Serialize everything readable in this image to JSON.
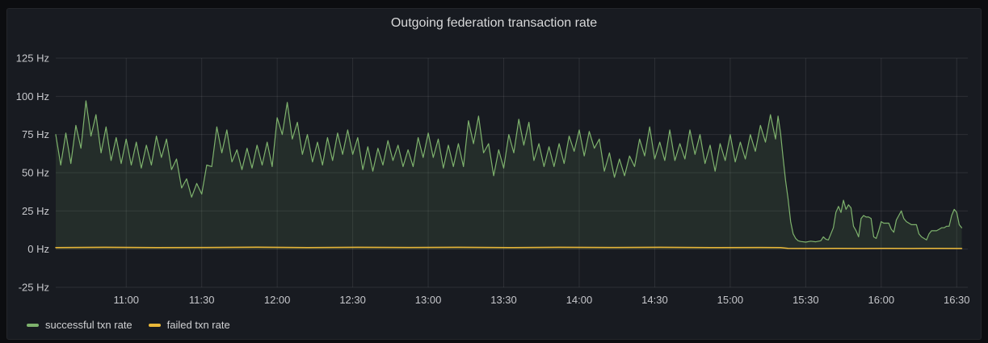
{
  "panel": {
    "title": "Outgoing federation transaction rate"
  },
  "colors": {
    "page_bg": "#0c0d10",
    "panel_bg": "#181b21",
    "grid": "rgba(255,255,255,0.09)",
    "title_text": "#d8d9da",
    "tick_text": "#c7c8cc",
    "green": "#7EB26D",
    "yellow": "#EAB839"
  },
  "chart_data": {
    "type": "line",
    "title": "Outgoing federation transaction rate",
    "unit": "Hz",
    "grid": true,
    "legend_position": "bottom-left",
    "x_min": 0,
    "x_max": 360,
    "y_min": -25,
    "y_max": 125,
    "x_start_time": "10:32",
    "x_end_time": "16:32",
    "y_ticks": [
      {
        "v": 125,
        "label": "125 Hz"
      },
      {
        "v": 100,
        "label": "100 Hz"
      },
      {
        "v": 75,
        "label": "75 Hz"
      },
      {
        "v": 50,
        "label": "50 Hz"
      },
      {
        "v": 25,
        "label": "25 Hz"
      },
      {
        "v": 0,
        "label": "0 Hz"
      },
      {
        "v": -25,
        "label": "-25 Hz"
      }
    ],
    "x_ticks": [
      {
        "t": 28,
        "label": "11:00"
      },
      {
        "t": 58,
        "label": "11:30"
      },
      {
        "t": 88,
        "label": "12:00"
      },
      {
        "t": 118,
        "label": "12:30"
      },
      {
        "t": 148,
        "label": "13:00"
      },
      {
        "t": 178,
        "label": "13:30"
      },
      {
        "t": 208,
        "label": "14:00"
      },
      {
        "t": 238,
        "label": "14:30"
      },
      {
        "t": 268,
        "label": "15:00"
      },
      {
        "t": 298,
        "label": "15:30"
      },
      {
        "t": 328,
        "label": "16:00"
      },
      {
        "t": 358,
        "label": "16:30"
      }
    ],
    "series": [
      {
        "name": "successful txn rate",
        "color": "#7EB26D",
        "fill": "rgba(126,178,109,0.12)",
        "line_width": 1.2,
        "points": [
          [
            0,
            75
          ],
          [
            2,
            55
          ],
          [
            4,
            76
          ],
          [
            6,
            56
          ],
          [
            8,
            81
          ],
          [
            10,
            66
          ],
          [
            12,
            97
          ],
          [
            14,
            74
          ],
          [
            16,
            88
          ],
          [
            18,
            63
          ],
          [
            20,
            80
          ],
          [
            22,
            58
          ],
          [
            24,
            73
          ],
          [
            26,
            56
          ],
          [
            28,
            72
          ],
          [
            30,
            55
          ],
          [
            32,
            70
          ],
          [
            34,
            53
          ],
          [
            36,
            68
          ],
          [
            38,
            55
          ],
          [
            40,
            74
          ],
          [
            42,
            60
          ],
          [
            44,
            72
          ],
          [
            46,
            52
          ],
          [
            48,
            59
          ],
          [
            50,
            40
          ],
          [
            52,
            46
          ],
          [
            54,
            34
          ],
          [
            56,
            43
          ],
          [
            58,
            36
          ],
          [
            60,
            55
          ],
          [
            62,
            54
          ],
          [
            64,
            80
          ],
          [
            66,
            63
          ],
          [
            68,
            78
          ],
          [
            70,
            57
          ],
          [
            72,
            65
          ],
          [
            74,
            52
          ],
          [
            76,
            66
          ],
          [
            78,
            53
          ],
          [
            80,
            68
          ],
          [
            82,
            55
          ],
          [
            84,
            70
          ],
          [
            86,
            54
          ],
          [
            88,
            86
          ],
          [
            90,
            75
          ],
          [
            92,
            96
          ],
          [
            94,
            72
          ],
          [
            96,
            83
          ],
          [
            98,
            62
          ],
          [
            100,
            75
          ],
          [
            102,
            57
          ],
          [
            104,
            70
          ],
          [
            106,
            55
          ],
          [
            108,
            73
          ],
          [
            110,
            58
          ],
          [
            112,
            76
          ],
          [
            114,
            62
          ],
          [
            116,
            78
          ],
          [
            118,
            62
          ],
          [
            120,
            73
          ],
          [
            122,
            52
          ],
          [
            124,
            67
          ],
          [
            126,
            51
          ],
          [
            128,
            66
          ],
          [
            130,
            55
          ],
          [
            132,
            71
          ],
          [
            134,
            58
          ],
          [
            136,
            68
          ],
          [
            138,
            54
          ],
          [
            140,
            65
          ],
          [
            142,
            54
          ],
          [
            144,
            73
          ],
          [
            146,
            60
          ],
          [
            148,
            76
          ],
          [
            150,
            60
          ],
          [
            152,
            72
          ],
          [
            154,
            53
          ],
          [
            156,
            68
          ],
          [
            158,
            54
          ],
          [
            160,
            69
          ],
          [
            162,
            54
          ],
          [
            164,
            84
          ],
          [
            166,
            69
          ],
          [
            168,
            87
          ],
          [
            170,
            63
          ],
          [
            172,
            69
          ],
          [
            174,
            48
          ],
          [
            176,
            65
          ],
          [
            178,
            53
          ],
          [
            180,
            75
          ],
          [
            182,
            63
          ],
          [
            184,
            85
          ],
          [
            186,
            68
          ],
          [
            188,
            83
          ],
          [
            190,
            58
          ],
          [
            192,
            69
          ],
          [
            194,
            54
          ],
          [
            196,
            67
          ],
          [
            198,
            54
          ],
          [
            200,
            69
          ],
          [
            202,
            56
          ],
          [
            204,
            74
          ],
          [
            206,
            64
          ],
          [
            208,
            78
          ],
          [
            210,
            61
          ],
          [
            212,
            77
          ],
          [
            214,
            66
          ],
          [
            216,
            72
          ],
          [
            218,
            51
          ],
          [
            220,
            63
          ],
          [
            222,
            47
          ],
          [
            224,
            59
          ],
          [
            226,
            48
          ],
          [
            228,
            61
          ],
          [
            230,
            54
          ],
          [
            232,
            72
          ],
          [
            234,
            61
          ],
          [
            236,
            80
          ],
          [
            238,
            59
          ],
          [
            240,
            70
          ],
          [
            242,
            58
          ],
          [
            244,
            78
          ],
          [
            246,
            58
          ],
          [
            248,
            69
          ],
          [
            250,
            59
          ],
          [
            252,
            78
          ],
          [
            254,
            62
          ],
          [
            256,
            75
          ],
          [
            258,
            56
          ],
          [
            260,
            68
          ],
          [
            262,
            51
          ],
          [
            264,
            69
          ],
          [
            266,
            58
          ],
          [
            268,
            75
          ],
          [
            270,
            57
          ],
          [
            272,
            70
          ],
          [
            274,
            59
          ],
          [
            276,
            75
          ],
          [
            278,
            64
          ],
          [
            280,
            81
          ],
          [
            282,
            70
          ],
          [
            284,
            88
          ],
          [
            286,
            72
          ],
          [
            287,
            87
          ],
          [
            288,
            76
          ],
          [
            289,
            60
          ],
          [
            290,
            45
          ],
          [
            291,
            33
          ],
          [
            292,
            18
          ],
          [
            293,
            10
          ],
          [
            294,
            7
          ],
          [
            295,
            5.5
          ],
          [
            296,
            5
          ],
          [
            298,
            4.6
          ],
          [
            300,
            5.2
          ],
          [
            302,
            4.8
          ],
          [
            304,
            5.5
          ],
          [
            305,
            8
          ],
          [
            306,
            6.5
          ],
          [
            307,
            6
          ],
          [
            309,
            14
          ],
          [
            310,
            24
          ],
          [
            311,
            28
          ],
          [
            312,
            24
          ],
          [
            313,
            32
          ],
          [
            314,
            26
          ],
          [
            315,
            29
          ],
          [
            316,
            27
          ],
          [
            317,
            15
          ],
          [
            318,
            12
          ],
          [
            319,
            8
          ],
          [
            320,
            20
          ],
          [
            321,
            22
          ],
          [
            322,
            21
          ],
          [
            323,
            21
          ],
          [
            324,
            20
          ],
          [
            325,
            8
          ],
          [
            326,
            7
          ],
          [
            327,
            12
          ],
          [
            328,
            18
          ],
          [
            329,
            17
          ],
          [
            330,
            17
          ],
          [
            331,
            17
          ],
          [
            332,
            13
          ],
          [
            333,
            11
          ],
          [
            334,
            19
          ],
          [
            335,
            22
          ],
          [
            336,
            25
          ],
          [
            337,
            20
          ],
          [
            338,
            18
          ],
          [
            339,
            17
          ],
          [
            340,
            16
          ],
          [
            341,
            16
          ],
          [
            342,
            16
          ],
          [
            343,
            10
          ],
          [
            344,
            8
          ],
          [
            345,
            7
          ],
          [
            346,
            6
          ],
          [
            347,
            10
          ],
          [
            348,
            12
          ],
          [
            349,
            12
          ],
          [
            350,
            12
          ],
          [
            351,
            13
          ],
          [
            352,
            14
          ],
          [
            353,
            14
          ],
          [
            354,
            15
          ],
          [
            355,
            15
          ],
          [
            356,
            22
          ],
          [
            357,
            26
          ],
          [
            358,
            24
          ],
          [
            359,
            16
          ],
          [
            360,
            14
          ]
        ]
      },
      {
        "name": "failed txn rate",
        "color": "#EAB839",
        "fill": "rgba(234,184,57,0.10)",
        "line_width": 1.5,
        "points": [
          [
            0,
            1.0
          ],
          [
            20,
            1.2
          ],
          [
            40,
            1.0
          ],
          [
            60,
            1.1
          ],
          [
            80,
            1.3
          ],
          [
            100,
            1.0
          ],
          [
            120,
            1.2
          ],
          [
            140,
            1.1
          ],
          [
            160,
            1.2
          ],
          [
            180,
            1.0
          ],
          [
            200,
            1.2
          ],
          [
            220,
            1.1
          ],
          [
            240,
            1.2
          ],
          [
            260,
            1.0
          ],
          [
            280,
            1.1
          ],
          [
            288,
            1.0
          ],
          [
            291,
            0.5
          ],
          [
            300,
            0.4
          ],
          [
            310,
            0.5
          ],
          [
            320,
            0.4
          ],
          [
            330,
            0.5
          ],
          [
            340,
            0.4
          ],
          [
            350,
            0.5
          ],
          [
            360,
            0.4
          ]
        ]
      }
    ]
  }
}
